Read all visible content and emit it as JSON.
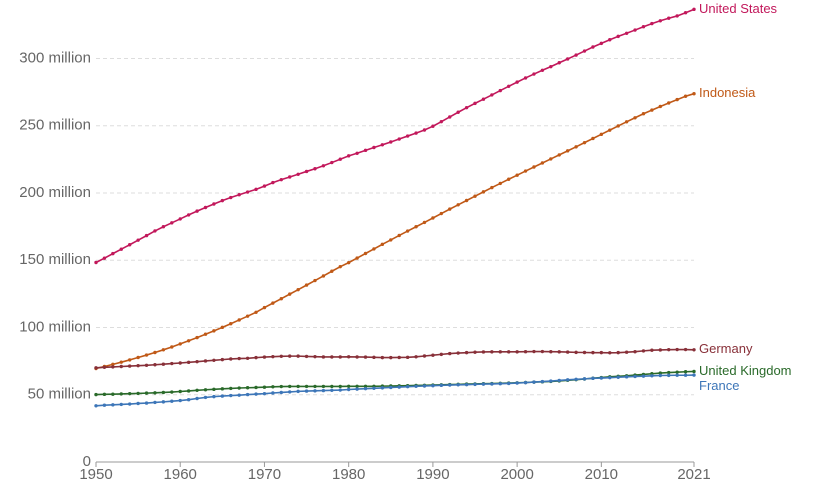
{
  "chart_data": {
    "type": "line",
    "x": [
      1950,
      1951,
      1952,
      1953,
      1954,
      1955,
      1956,
      1957,
      1958,
      1959,
      1960,
      1961,
      1962,
      1963,
      1964,
      1965,
      1966,
      1967,
      1968,
      1969,
      1970,
      1971,
      1972,
      1973,
      1974,
      1975,
      1976,
      1977,
      1978,
      1979,
      1980,
      1981,
      1982,
      1983,
      1984,
      1985,
      1986,
      1987,
      1988,
      1989,
      1990,
      1991,
      1992,
      1993,
      1994,
      1995,
      1996,
      1997,
      1998,
      1999,
      2000,
      2001,
      2002,
      2003,
      2004,
      2005,
      2006,
      2007,
      2008,
      2009,
      2010,
      2011,
      2012,
      2013,
      2014,
      2015,
      2016,
      2017,
      2018,
      2019,
      2020,
      2021
    ],
    "series": [
      {
        "name": "United States",
        "color": "#c2185b",
        "values": [
          148.3,
          151.5,
          154.9,
          158.2,
          161.5,
          164.9,
          168.3,
          171.8,
          174.9,
          177.8,
          180.7,
          183.7,
          186.5,
          189.2,
          191.8,
          194.3,
          196.6,
          198.7,
          200.7,
          202.7,
          205.1,
          207.7,
          209.9,
          211.9,
          213.9,
          216.0,
          218.0,
          220.2,
          222.6,
          225.1,
          227.6,
          229.5,
          231.7,
          233.8,
          235.8,
          237.9,
          240.1,
          242.3,
          244.5,
          246.8,
          249.6,
          253.0,
          256.5,
          260.0,
          263.4,
          266.6,
          269.7,
          272.9,
          276.1,
          279.3,
          282.4,
          285.5,
          288.4,
          291.2,
          293.9,
          296.8,
          299.6,
          302.5,
          305.5,
          308.5,
          311.2,
          313.9,
          316.4,
          318.7,
          321.1,
          323.6,
          325.9,
          328.0,
          329.9,
          331.6,
          334.0,
          336.5
        ]
      },
      {
        "name": "Indonesia",
        "color": "#c05917",
        "values": [
          69.5,
          71.0,
          72.6,
          74.2,
          75.9,
          77.7,
          79.5,
          81.4,
          83.4,
          85.5,
          87.8,
          90.1,
          92.5,
          95.0,
          97.5,
          100.1,
          102.8,
          105.6,
          108.4,
          111.3,
          114.8,
          118.1,
          121.4,
          124.8,
          128.1,
          131.5,
          134.9,
          138.3,
          141.8,
          145.2,
          148.2,
          151.6,
          155.0,
          158.4,
          161.8,
          165.1,
          168.4,
          171.7,
          174.9,
          178.1,
          181.4,
          184.7,
          188.0,
          191.2,
          194.4,
          197.6,
          200.8,
          204.0,
          207.1,
          210.2,
          213.2,
          216.3,
          219.3,
          222.3,
          225.3,
          228.3,
          231.3,
          234.3,
          237.4,
          240.5,
          243.6,
          246.7,
          249.8,
          252.9,
          255.9,
          258.9,
          261.6,
          264.3,
          266.9,
          269.4,
          271.9,
          273.8
        ]
      },
      {
        "name": "Germany",
        "color": "#883039",
        "values": [
          70.0,
          70.4,
          70.7,
          71.0,
          71.3,
          71.6,
          71.9,
          72.3,
          72.7,
          73.2,
          73.6,
          74.1,
          74.6,
          75.1,
          75.6,
          76.1,
          76.6,
          76.9,
          77.1,
          77.6,
          78.0,
          78.3,
          78.6,
          78.7,
          78.7,
          78.5,
          78.3,
          78.1,
          78.1,
          78.1,
          78.2,
          78.1,
          78.0,
          77.8,
          77.6,
          77.6,
          77.7,
          77.8,
          78.2,
          78.8,
          79.4,
          80.0,
          80.6,
          81.0,
          81.3,
          81.6,
          81.8,
          81.9,
          81.9,
          81.9,
          81.9,
          82.0,
          82.1,
          82.1,
          82.0,
          81.9,
          81.7,
          81.5,
          81.4,
          81.3,
          81.3,
          81.2,
          81.3,
          81.6,
          82.0,
          82.6,
          83.1,
          83.3,
          83.5,
          83.6,
          83.6,
          83.4
        ]
      },
      {
        "name": "United Kingdom",
        "color": "#2a6a2a",
        "values": [
          50.1,
          50.3,
          50.4,
          50.6,
          50.8,
          51.0,
          51.2,
          51.4,
          51.7,
          52.0,
          52.4,
          52.8,
          53.3,
          53.7,
          54.0,
          54.4,
          54.7,
          55.0,
          55.2,
          55.4,
          55.6,
          55.9,
          56.1,
          56.2,
          56.2,
          56.2,
          56.2,
          56.2,
          56.2,
          56.2,
          56.3,
          56.3,
          56.3,
          56.3,
          56.4,
          56.5,
          56.6,
          56.7,
          56.9,
          57.0,
          57.2,
          57.4,
          57.6,
          57.7,
          57.9,
          58.0,
          58.2,
          58.3,
          58.5,
          58.7,
          58.9,
          59.1,
          59.4,
          59.6,
          59.9,
          60.3,
          60.7,
          61.2,
          61.7,
          62.3,
          62.8,
          63.3,
          63.7,
          64.1,
          64.6,
          65.1,
          65.6,
          66.1,
          66.5,
          66.8,
          67.1,
          67.3
        ]
      },
      {
        "name": "France",
        "color": "#3d76b8",
        "values": [
          41.8,
          42.2,
          42.5,
          42.8,
          43.1,
          43.5,
          43.8,
          44.3,
          44.7,
          45.2,
          45.7,
          46.3,
          47.2,
          48.0,
          48.6,
          49.0,
          49.4,
          49.7,
          50.1,
          50.5,
          50.8,
          51.3,
          51.7,
          52.1,
          52.5,
          52.7,
          52.9,
          53.1,
          53.3,
          53.5,
          53.9,
          54.2,
          54.5,
          54.8,
          55.1,
          55.4,
          55.7,
          56.0,
          56.3,
          56.5,
          56.7,
          57.0,
          57.2,
          57.4,
          57.5,
          57.7,
          57.9,
          58.0,
          58.2,
          58.4,
          58.7,
          59.0,
          59.4,
          59.8,
          60.2,
          60.6,
          61.1,
          61.5,
          61.8,
          62.2,
          62.4,
          62.7,
          63.0,
          63.3,
          63.6,
          63.8,
          64.1,
          64.3,
          64.4,
          64.5,
          64.5,
          64.6
        ]
      }
    ],
    "xlim": [
      1950,
      2021
    ],
    "xticks": [
      1950,
      1960,
      1970,
      1980,
      1990,
      2000,
      2010,
      2021
    ],
    "ylim": [
      0,
      337.5
    ],
    "yticks": [
      0,
      {
        "value": 50,
        "label": "50 million"
      },
      {
        "value": 100,
        "label": "100 million"
      },
      {
        "value": 150,
        "label": "150 million"
      },
      {
        "value": 200,
        "label": "200 million"
      },
      {
        "value": 250,
        "label": "250 million"
      },
      {
        "value": 300,
        "label": "300 million"
      }
    ],
    "grid": true
  }
}
